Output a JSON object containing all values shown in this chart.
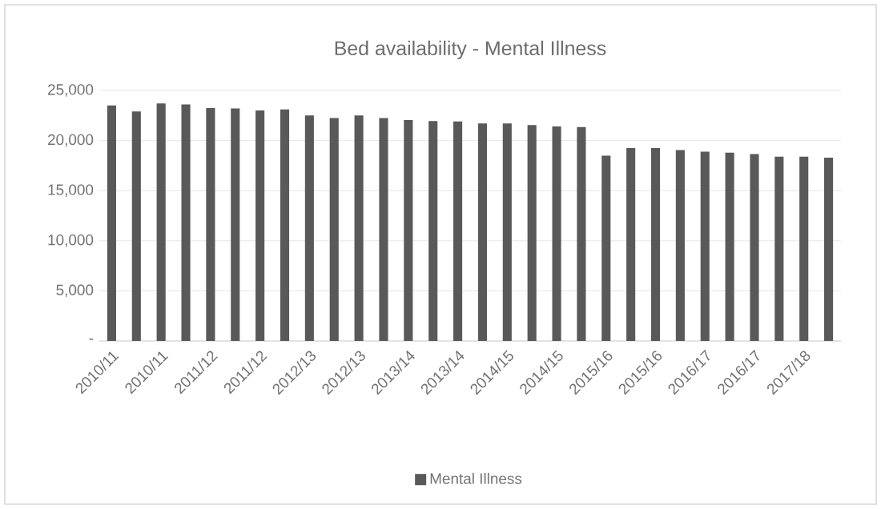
{
  "chart_data": {
    "type": "bar",
    "title": "Bed availability - Mental Illness",
    "categories": [
      "2010/11",
      null,
      "2010/11",
      null,
      "2011/12",
      null,
      "2011/12",
      null,
      "2012/13",
      null,
      "2012/13",
      null,
      "2013/14",
      null,
      "2013/14",
      null,
      "2014/15",
      null,
      "2014/15",
      null,
      "2015/16",
      null,
      "2015/16",
      null,
      "2016/17",
      null,
      "2016/17",
      null,
      "2017/18",
      null
    ],
    "series": [
      {
        "name": "Mental Illness",
        "color": "#595959",
        "values": [
          23500,
          22900,
          23700,
          23600,
          23250,
          23200,
          23000,
          23100,
          22500,
          22250,
          22500,
          22250,
          22050,
          21950,
          21900,
          21700,
          21700,
          21550,
          21400,
          21350,
          18500,
          19250,
          19250,
          19050,
          18900,
          18800,
          18650,
          18400,
          18400,
          18300
        ]
      }
    ],
    "ylim": [
      0,
      25000
    ],
    "yticks": [
      {
        "value": 0,
        "label": "-"
      },
      {
        "value": 5000,
        "label": "5,000"
      },
      {
        "value": 10000,
        "label": "10,000"
      },
      {
        "value": 15000,
        "label": "15,000"
      },
      {
        "value": 20000,
        "label": "20,000"
      },
      {
        "value": 25000,
        "label": "25,000"
      }
    ],
    "grid": "y",
    "legend": "bottom"
  }
}
